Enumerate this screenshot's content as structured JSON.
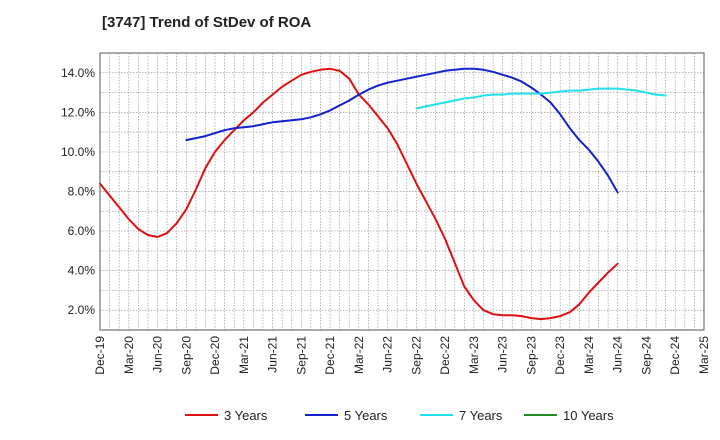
{
  "chart_data": {
    "type": "line",
    "title": "[3747]  Trend of StDev of ROA",
    "xlabel": "",
    "ylabel": "",
    "ylim": [
      1.0,
      15.0
    ],
    "y_ticks": [
      2.0,
      4.0,
      6.0,
      8.0,
      10.0,
      12.0,
      14.0
    ],
    "y_tick_labels": [
      "2.0%",
      "4.0%",
      "6.0%",
      "8.0%",
      "10.0%",
      "12.0%",
      "14.0%"
    ],
    "x_tick_labels": [
      "Dec-19",
      "Mar-20",
      "Jun-20",
      "Sep-20",
      "Dec-20",
      "Mar-21",
      "Jun-21",
      "Sep-21",
      "Dec-21",
      "Mar-22",
      "Jun-22",
      "Sep-22",
      "Dec-22",
      "Mar-23",
      "Jun-23",
      "Sep-23",
      "Dec-23",
      "Mar-24",
      "Jun-24",
      "Sep-24",
      "Dec-24",
      "Mar-25"
    ],
    "grid": true,
    "legend_position": "bottom",
    "series": [
      {
        "name": "3 Years",
        "color": "#dd1111",
        "points": [
          [
            "Dec-19",
            8.4
          ],
          [
            "Jan-20",
            7.8
          ],
          [
            "Feb-20",
            7.2
          ],
          [
            "Mar-20",
            6.6
          ],
          [
            "Apr-20",
            6.1
          ],
          [
            "May-20",
            5.8
          ],
          [
            "Jun-20",
            5.7
          ],
          [
            "Jul-20",
            5.9
          ],
          [
            "Aug-20",
            6.4
          ],
          [
            "Sep-20",
            7.1
          ],
          [
            "Oct-20",
            8.1
          ],
          [
            "Nov-20",
            9.2
          ],
          [
            "Dec-20",
            10.0
          ],
          [
            "Jan-21",
            10.6
          ],
          [
            "Feb-21",
            11.1
          ],
          [
            "Mar-21",
            11.6
          ],
          [
            "Apr-21",
            12.0
          ],
          [
            "May-21",
            12.5
          ],
          [
            "Jun-21",
            12.9
          ],
          [
            "Jul-21",
            13.3
          ],
          [
            "Aug-21",
            13.6
          ],
          [
            "Sep-21",
            13.9
          ],
          [
            "Oct-21",
            14.05
          ],
          [
            "Nov-21",
            14.15
          ],
          [
            "Dec-21",
            14.2
          ],
          [
            "Jan-22",
            14.1
          ],
          [
            "Feb-22",
            13.7
          ],
          [
            "Mar-22",
            12.9
          ],
          [
            "Apr-22",
            12.4
          ],
          [
            "May-22",
            11.8
          ],
          [
            "Jun-22",
            11.2
          ],
          [
            "Jul-22",
            10.4
          ],
          [
            "Aug-22",
            9.4
          ],
          [
            "Sep-22",
            8.4
          ],
          [
            "Oct-22",
            7.5
          ],
          [
            "Nov-22",
            6.6
          ],
          [
            "Dec-22",
            5.6
          ],
          [
            "Jan-23",
            4.4
          ],
          [
            "Feb-23",
            3.2
          ],
          [
            "Mar-23",
            2.5
          ],
          [
            "Apr-23",
            2.0
          ],
          [
            "May-23",
            1.8
          ],
          [
            "Jun-23",
            1.75
          ],
          [
            "Jul-23",
            1.75
          ],
          [
            "Aug-23",
            1.7
          ],
          [
            "Sep-23",
            1.6
          ],
          [
            "Oct-23",
            1.55
          ],
          [
            "Nov-23",
            1.6
          ],
          [
            "Dec-23",
            1.7
          ],
          [
            "Jan-24",
            1.9
          ],
          [
            "Feb-24",
            2.3
          ],
          [
            "Mar-24",
            2.9
          ],
          [
            "Apr-24",
            3.4
          ],
          [
            "May-24",
            3.9
          ],
          [
            "Jun-24",
            4.35
          ]
        ]
      },
      {
        "name": "5 Years",
        "color": "#1122cc",
        "points": [
          [
            "Sep-20",
            10.6
          ],
          [
            "Oct-20",
            10.7
          ],
          [
            "Nov-20",
            10.8
          ],
          [
            "Dec-20",
            10.95
          ],
          [
            "Jan-21",
            11.1
          ],
          [
            "Feb-21",
            11.2
          ],
          [
            "Mar-21",
            11.25
          ],
          [
            "Apr-21",
            11.3
          ],
          [
            "May-21",
            11.4
          ],
          [
            "Jun-21",
            11.5
          ],
          [
            "Jul-21",
            11.55
          ],
          [
            "Aug-21",
            11.6
          ],
          [
            "Sep-21",
            11.65
          ],
          [
            "Oct-21",
            11.75
          ],
          [
            "Nov-21",
            11.9
          ],
          [
            "Dec-21",
            12.1
          ],
          [
            "Jan-22",
            12.35
          ],
          [
            "Feb-22",
            12.6
          ],
          [
            "Mar-22",
            12.9
          ],
          [
            "Apr-22",
            13.15
          ],
          [
            "May-22",
            13.35
          ],
          [
            "Jun-22",
            13.5
          ],
          [
            "Jul-22",
            13.6
          ],
          [
            "Aug-22",
            13.7
          ],
          [
            "Sep-22",
            13.8
          ],
          [
            "Oct-22",
            13.9
          ],
          [
            "Nov-22",
            14.0
          ],
          [
            "Dec-22",
            14.1
          ],
          [
            "Jan-23",
            14.15
          ],
          [
            "Feb-23",
            14.2
          ],
          [
            "Mar-23",
            14.2
          ],
          [
            "Apr-23",
            14.15
          ],
          [
            "May-23",
            14.05
          ],
          [
            "Jun-23",
            13.9
          ],
          [
            "Jul-23",
            13.75
          ],
          [
            "Aug-23",
            13.55
          ],
          [
            "Sep-23",
            13.25
          ],
          [
            "Oct-23",
            12.9
          ],
          [
            "Nov-23",
            12.5
          ],
          [
            "Dec-23",
            11.9
          ],
          [
            "Jan-24",
            11.2
          ],
          [
            "Feb-24",
            10.6
          ],
          [
            "Mar-24",
            10.1
          ],
          [
            "Apr-24",
            9.5
          ],
          [
            "May-24",
            8.8
          ],
          [
            "Jun-24",
            7.95
          ]
        ]
      },
      {
        "name": "7 Years",
        "color": "#22e0ee",
        "points": [
          [
            "Sep-22",
            12.2
          ],
          [
            "Oct-22",
            12.3
          ],
          [
            "Nov-22",
            12.4
          ],
          [
            "Dec-22",
            12.5
          ],
          [
            "Jan-23",
            12.6
          ],
          [
            "Feb-23",
            12.7
          ],
          [
            "Mar-23",
            12.75
          ],
          [
            "Apr-23",
            12.85
          ],
          [
            "May-23",
            12.9
          ],
          [
            "Jun-23",
            12.9
          ],
          [
            "Jul-23",
            12.95
          ],
          [
            "Aug-23",
            12.95
          ],
          [
            "Sep-23",
            12.95
          ],
          [
            "Oct-23",
            12.95
          ],
          [
            "Nov-23",
            13.0
          ],
          [
            "Dec-23",
            13.05
          ],
          [
            "Jan-24",
            13.1
          ],
          [
            "Feb-24",
            13.1
          ],
          [
            "Mar-24",
            13.15
          ],
          [
            "Apr-24",
            13.2
          ],
          [
            "May-24",
            13.2
          ],
          [
            "Jun-24",
            13.2
          ],
          [
            "Jul-24",
            13.15
          ],
          [
            "Aug-24",
            13.1
          ],
          [
            "Sep-24",
            13.0
          ],
          [
            "Oct-24",
            12.9
          ],
          [
            "Nov-24",
            12.85
          ]
        ]
      },
      {
        "name": "10 Years",
        "color": "#228822",
        "points": []
      }
    ]
  }
}
